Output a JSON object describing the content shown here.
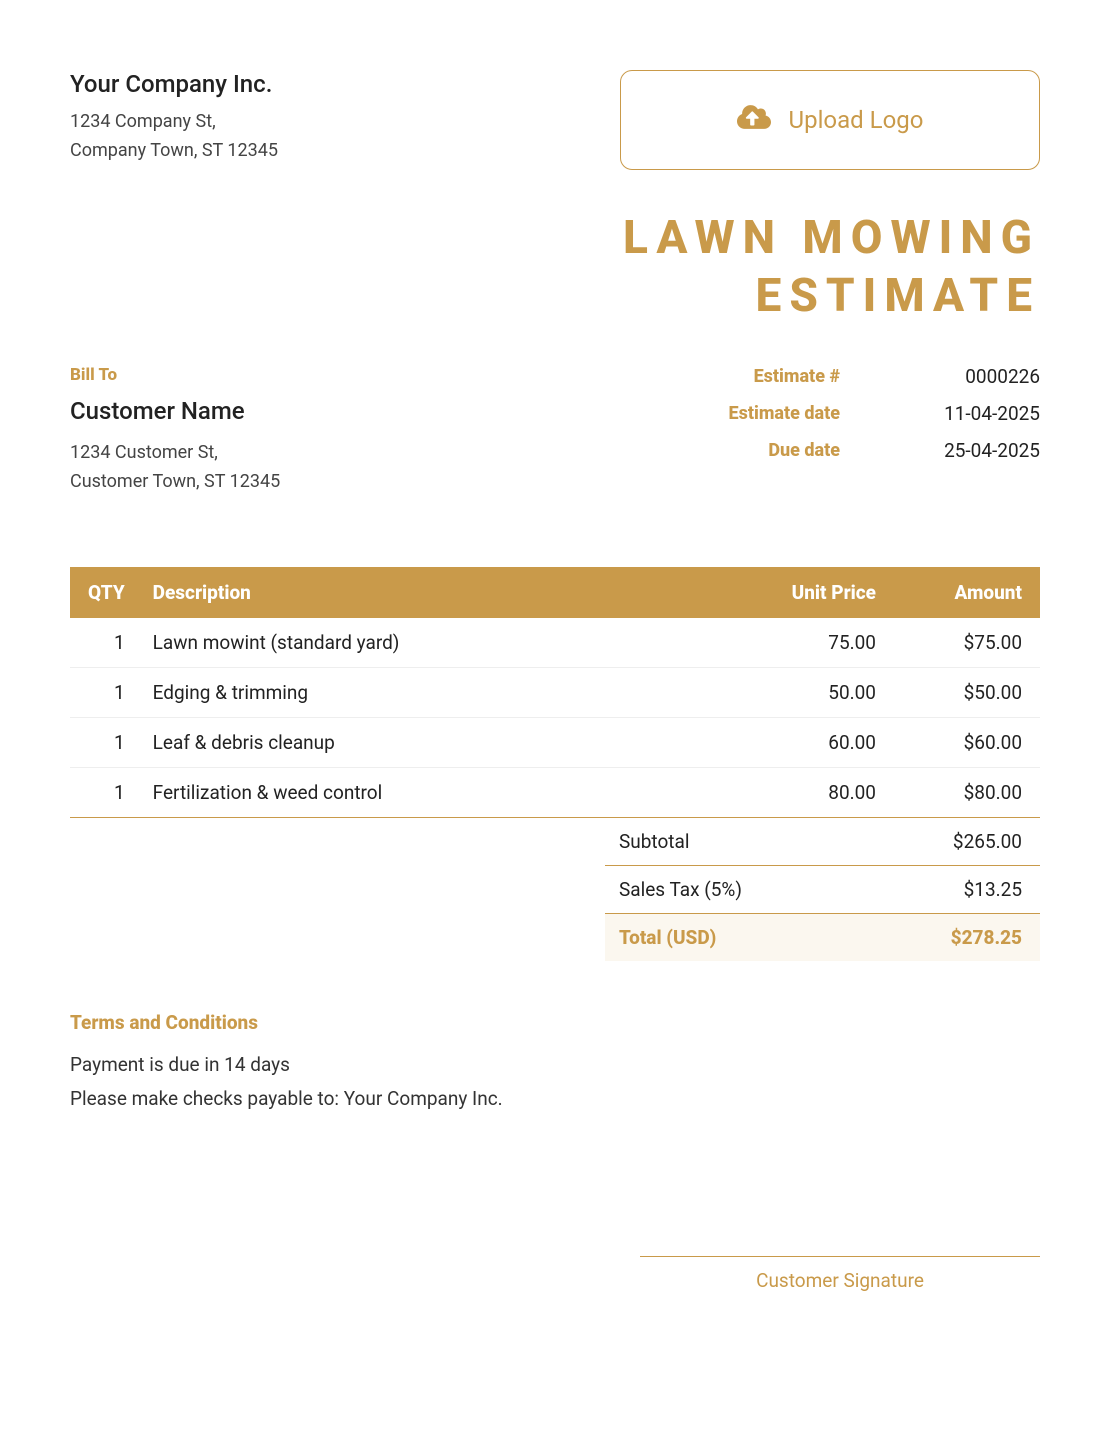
{
  "colors": {
    "accent": "#c99a4a",
    "text": "#222222",
    "subtext": "#444444",
    "tableHeaderBg": "#c99a4a",
    "tableHeaderText": "#ffffff",
    "totalRowBg": "#fbf7ef",
    "rowBorder": "#eeeeee"
  },
  "company": {
    "name": "Your Company Inc.",
    "addr_line1": "1234 Company St,",
    "addr_line2": "Company Town, ST 12345"
  },
  "upload_logo_label": "Upload Logo",
  "document_title_line1": "LAWN MOWING",
  "document_title_line2": "ESTIMATE",
  "bill_to_label": "Bill To",
  "customer": {
    "name": "Customer Name",
    "addr_line1": "1234 Customer St,",
    "addr_line2": "Customer Town, ST 12345"
  },
  "estimate_meta": {
    "number_label": "Estimate #",
    "number_value": "0000226",
    "date_label": "Estimate date",
    "date_value": "11-04-2025",
    "due_label": "Due date",
    "due_value": "25-04-2025"
  },
  "table": {
    "headers": {
      "qty": "QTY",
      "desc": "Description",
      "unit": "Unit Price",
      "amount": "Amount"
    },
    "rows": [
      {
        "qty": "1",
        "desc": "Lawn mowint (standard yard)",
        "unit": "75.00",
        "amount": "$75.00"
      },
      {
        "qty": "1",
        "desc": "Edging & trimming",
        "unit": "50.00",
        "amount": "$50.00"
      },
      {
        "qty": "1",
        "desc": "Leaf & debris cleanup",
        "unit": "60.00",
        "amount": "$60.00"
      },
      {
        "qty": "1",
        "desc": "Fertilization & weed control",
        "unit": "80.00",
        "amount": "$80.00"
      }
    ]
  },
  "totals": {
    "subtotal_label": "Subtotal",
    "subtotal_value": "$265.00",
    "tax_label": "Sales Tax (5%)",
    "tax_value": "$13.25",
    "total_label": "Total (USD)",
    "total_value": "$278.25"
  },
  "terms": {
    "title": "Terms and Conditions",
    "line1": "Payment is due in 14 days",
    "line2": "Please make checks payable to: Your Company Inc."
  },
  "signature_label": "Customer Signature"
}
